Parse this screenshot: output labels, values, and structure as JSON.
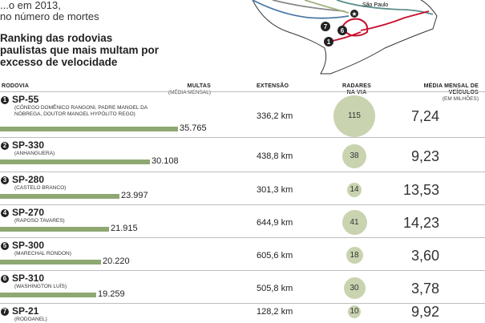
{
  "intro": {
    "line1": "...o em 2013,",
    "line2": "no número de mortes"
  },
  "ranking_title": "Ranking das rodovias paulistas que mais multam por excesso de velocidade",
  "map": {
    "city_label": "São Paulo"
  },
  "headers": {
    "rodovia": "RODOVIA",
    "multas": "MULTAS",
    "multas_sub": "(MÉDIA MENSAL)",
    "extensao": "EXTENSÃO",
    "radares": "RADARES NA VIA",
    "media": "MÉDIA MENSAL DE VEÍCULOS",
    "media_sub": "(EM MILHÕES)"
  },
  "rows": [
    {
      "rank": "1",
      "road": "SP-55",
      "alias": "(CÔNEGO DOMÊNICO RANGONI, PADRE MANOEL DA NÓBREGA, DOUTOR MANOEL HYPÓLITO REGO)",
      "fines": "35.765",
      "extension": "336,2 km",
      "radars": "115",
      "vehicles": "7,24"
    },
    {
      "rank": "2",
      "road": "SP-330",
      "alias": "(ANHANGUERA)",
      "fines": "30.108",
      "extension": "438,8 km",
      "radars": "38",
      "vehicles": "9,23"
    },
    {
      "rank": "3",
      "road": "SP-280",
      "alias": "(CASTELO BRANCO)",
      "fines": "23.997",
      "extension": "301,3 km",
      "radars": "14",
      "vehicles": "13,53"
    },
    {
      "rank": "4",
      "road": "SP-270",
      "alias": "(RAPOSO TAVARES)",
      "fines": "21.915",
      "extension": "644,9 km",
      "radars": "41",
      "vehicles": "14,23"
    },
    {
      "rank": "5",
      "road": "SP-300",
      "alias": "(MARECHAL RONDON)",
      "fines": "20.220",
      "extension": "605,6 km",
      "radars": "18",
      "vehicles": "3,60"
    },
    {
      "rank": "6",
      "road": "SP-310",
      "alias": "(WASHINGTON LUÍS)",
      "fines": "19.259",
      "extension": "505,8 km",
      "radars": "30",
      "vehicles": "3,78"
    },
    {
      "rank": "7",
      "road": "SP-21",
      "alias": "(RODOANEL)",
      "fines": "",
      "extension": "128,2 km",
      "radars": "10",
      "vehicles": "9,92"
    }
  ],
  "chart_data": {
    "type": "bar",
    "categories": [
      "SP-55",
      "SP-330",
      "SP-280",
      "SP-270",
      "SP-300",
      "SP-310",
      "SP-21"
    ],
    "series": [
      {
        "name": "MULTAS (MÉDIA MENSAL)",
        "values": [
          35765,
          30108,
          23997,
          21915,
          20220,
          19259,
          null
        ]
      },
      {
        "name": "EXTENSÃO",
        "values": [
          336.2,
          438.8,
          301.3,
          644.9,
          605.6,
          505.8,
          128.2
        ]
      },
      {
        "name": "RADARES NA VIA",
        "values": [
          115,
          38,
          14,
          41,
          18,
          30,
          10
        ]
      },
      {
        "name": "MÉDIA MENSAL DE VEÍCULOS (EM MILHÕES)",
        "values": [
          7.24,
          9.23,
          13.53,
          14.23,
          3.6,
          3.78,
          9.92
        ]
      }
    ],
    "title": "Ranking das rodovias paulistas que mais multam por excesso de velocidade",
    "colors": {
      "bar": "#8ea872",
      "bubble": "#c9d3b0",
      "rodoanel": "#c8102e"
    }
  }
}
